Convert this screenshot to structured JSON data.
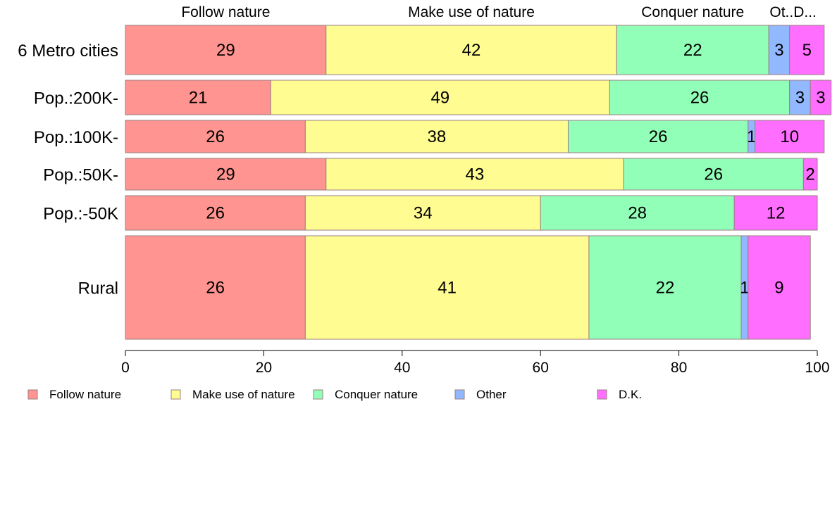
{
  "chart_data": {
    "type": "bar",
    "orientation": "horizontal",
    "stacked": true,
    "column_headers": [
      "Follow nature",
      "Make use of nature",
      "Conquer nature",
      "Ot..D..."
    ],
    "categories": [
      "6 Metro cities",
      "Pop.:200K-",
      "Pop.:100K-",
      "Pop.:50K-",
      "Pop.:-50K",
      "Rural"
    ],
    "series": [
      {
        "name": "Follow nature",
        "color": "#FF9490",
        "values": [
          29,
          21,
          26,
          29,
          26,
          26
        ],
        "labels": [
          "29",
          "21",
          "26",
          "29",
          "26",
          "26"
        ]
      },
      {
        "name": "Make use of nature",
        "color": "#FFFC92",
        "values": [
          42,
          49,
          38,
          43,
          34,
          41
        ],
        "labels": [
          "42",
          "49",
          "38",
          "43",
          "34",
          "41"
        ]
      },
      {
        "name": "Conquer nature",
        "color": "#92FFB8",
        "values": [
          22,
          26,
          26,
          26,
          28,
          22
        ],
        "labels": [
          "22",
          "26",
          "26",
          "26",
          "28",
          "22"
        ]
      },
      {
        "name": "Other",
        "color": "#92B8FF",
        "values": [
          3,
          3,
          1,
          0,
          0,
          1
        ],
        "labels": [
          "3",
          "3",
          "1",
          "",
          "",
          "1"
        ]
      },
      {
        "name": "D.K.",
        "color": "#FF6EFF",
        "values": [
          5,
          3,
          10,
          2,
          12,
          9
        ],
        "labels": [
          "5",
          "3",
          "10",
          "2",
          "12",
          "9"
        ]
      }
    ],
    "xlim": [
      0,
      100
    ],
    "xticks": [
      "0",
      "20",
      "40",
      "60",
      "80",
      "100"
    ],
    "legend_position": "bottom",
    "grid": false
  }
}
